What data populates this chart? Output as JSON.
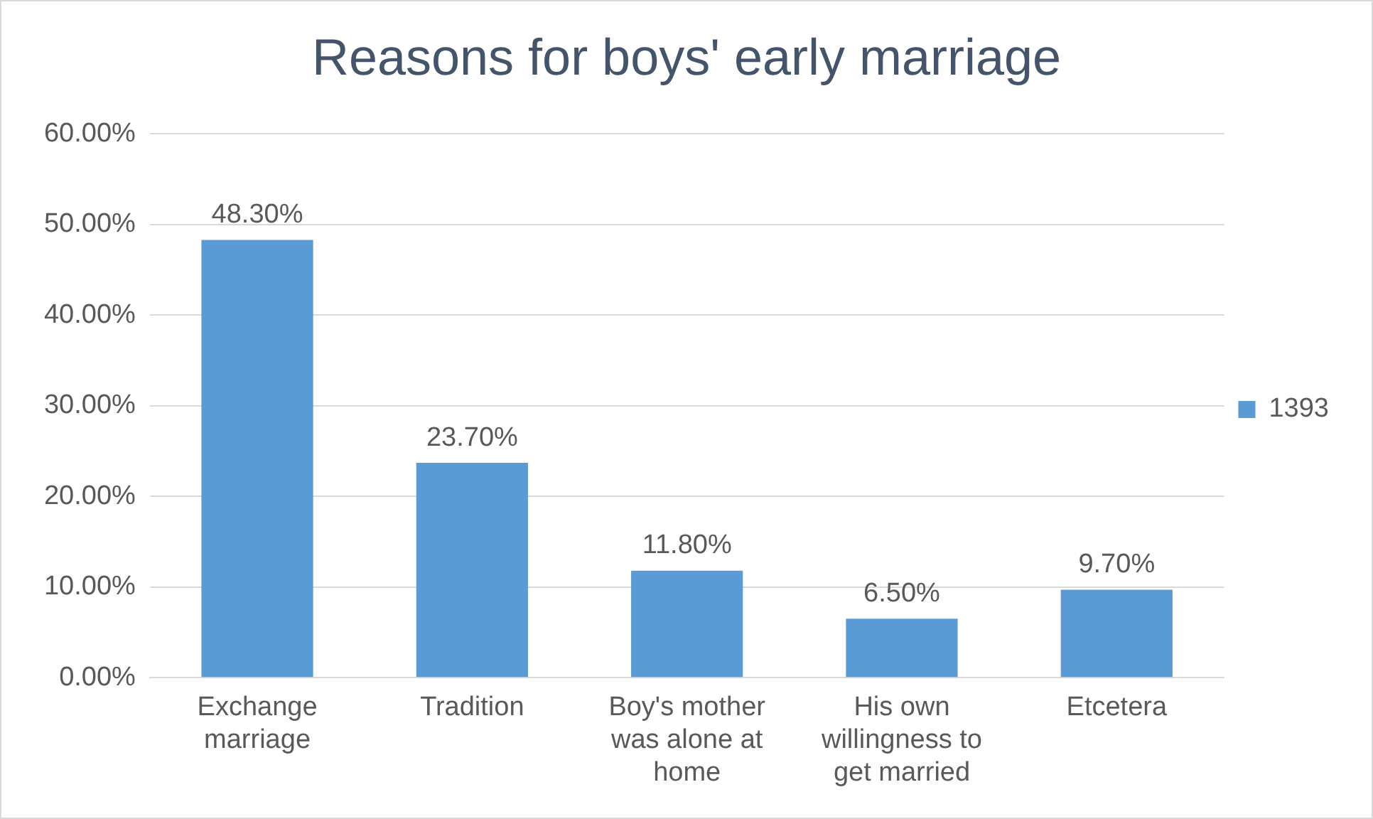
{
  "chart_data": {
    "type": "bar",
    "title": "Reasons for boys' early marriage",
    "categories": [
      "Exchange marriage",
      "Tradition",
      "Boy's mother was alone at home",
      "His own willingness to get married",
      "Etcetera"
    ],
    "series": [
      {
        "name": "1393",
        "color": "#5b9bd5",
        "values": [
          48.3,
          23.7,
          11.8,
          6.5,
          9.7
        ],
        "value_labels": [
          "48.30%",
          "23.70%",
          "11.80%",
          "6.50%",
          "9.70%"
        ]
      }
    ],
    "ylim": [
      0,
      60
    ],
    "yticks": [
      {
        "value": 0,
        "label": "0.00%"
      },
      {
        "value": 10,
        "label": "10.00%"
      },
      {
        "value": 20,
        "label": "20.00%"
      },
      {
        "value": 30,
        "label": "30.00%"
      },
      {
        "value": 40,
        "label": "40.00%"
      },
      {
        "value": 50,
        "label": "50.00%"
      },
      {
        "value": 60,
        "label": "60.00%"
      }
    ],
    "grid": "y",
    "legend": "right"
  }
}
